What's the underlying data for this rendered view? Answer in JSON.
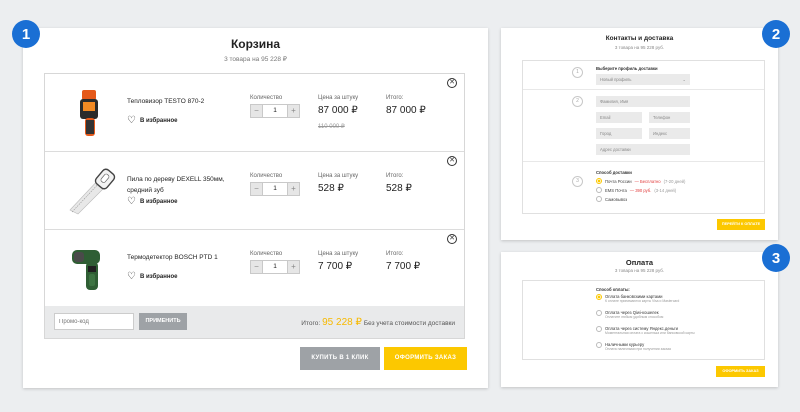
{
  "badges": [
    "1",
    "2",
    "3"
  ],
  "cart": {
    "title": "Корзина",
    "subtitle": "3 товара на 95 228 ₽",
    "qty_label": "Количество",
    "price_label": "Цена за штуку",
    "total_label": "Итого:",
    "fav_label": "В избранное",
    "items": [
      {
        "name": "Тепловизор TESTO 870-2",
        "qty": "1",
        "price": "87 000 ₽",
        "old_price": "110 000 ₽",
        "total": "87 000 ₽",
        "icon": "thermal-camera-icon"
      },
      {
        "name": "Пила по дереву DEXELL 350мм, средний зуб",
        "qty": "1",
        "price": "528 ₽",
        "old_price": "",
        "total": "528 ₽",
        "icon": "hand-saw-icon"
      },
      {
        "name": "Термодетектор BOSCH PTD 1",
        "qty": "1",
        "price": "7 700 ₽",
        "old_price": "",
        "total": "7 700 ₽",
        "icon": "thermo-detector-icon"
      }
    ],
    "promo_placeholder": "Промо-код",
    "apply_label": "ПРИМЕНИТЬ",
    "sum_prefix": "Итого:",
    "sum_amount": "95 228 ₽",
    "sum_suffix": "Без учета стоимости доставки",
    "one_click_label": "КУПИТЬ В 1 КЛИК",
    "order_label": "ОФОРМИТЬ ЗАКАЗ"
  },
  "contacts": {
    "title": "Контакты и доставка",
    "subtitle": "3 товара на 95 228 руб.",
    "profile_label": "Выберите профиль доставки",
    "profile_value": "Новый профиль",
    "name_ph": "Фамилия, Имя",
    "email_ph": "Email",
    "phone_ph": "Телефон",
    "city_ph": "Город",
    "index_ph": "Индекс",
    "address_ph": "Адрес доставки",
    "delivery_label": "Способ доставки",
    "delivery_opts": [
      {
        "name": "Почта России",
        "note": "— Бесплатно",
        "days": "(7-20 дней)"
      },
      {
        "name": "EMS Почта",
        "note": "— 390 руб.",
        "days": "(3-14 дней)"
      },
      {
        "name": "Самовывоз",
        "note": "",
        "days": ""
      }
    ],
    "steps": [
      "1",
      "2",
      "3"
    ],
    "next_label": "ПЕРЕЙТИ К ОПЛАТЕ"
  },
  "payment": {
    "title": "Оплата",
    "subtitle": "3 товара на 95 228 руб.",
    "method_label": "Способ оплаты:",
    "options": [
      {
        "title": "Оплата банковскими картами",
        "sub": "К оплате принимаются карты Visa и Mastercard"
      },
      {
        "title": "Оплата через Qiwi-кошелек",
        "sub": "Оплатите любым удобным способом"
      },
      {
        "title": "Оплата через систему Яндекс.деньги",
        "sub": "Моментальная оплата с кошелька или банковской карты"
      },
      {
        "title": "Наличными курьеру",
        "sub": "Оплата наличными при получении заказа"
      }
    ],
    "confirm_label": "ОФОРМИТЬ ЗАКАЗ"
  }
}
